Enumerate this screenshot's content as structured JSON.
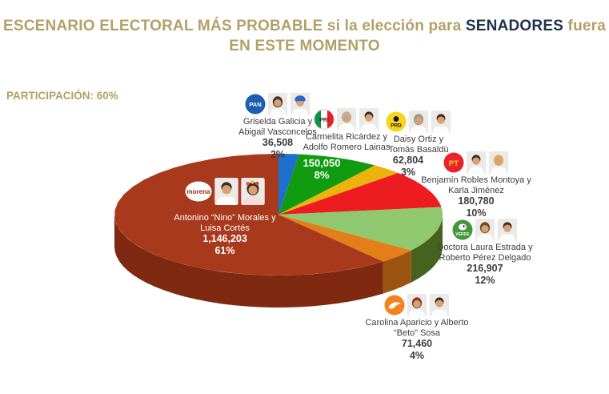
{
  "title": {
    "line1_pre": "ESCENARIO ELECTORAL MÁS PROBABLE si la elección para ",
    "line1_highlight": "SENADORES",
    "line1_post": " fuera",
    "line2": "EN ESTE MOMENTO"
  },
  "participation_label": "PARTICIPACIÓN: 60%",
  "colors": {
    "title_gold": "#B2A167",
    "highlight_navy": "#20324A",
    "label_text": "#3D3D3D",
    "on_slice_text": "#FFFFFF"
  },
  "chart_data": {
    "type": "pie",
    "style": "3d",
    "title": "ESCENARIO ELECTORAL MÁS PROBABLE si la elección para SENADORES fuera EN ESTE MOMENTO",
    "subtitle": "PARTICIPACIÓN: 60%",
    "start_angle_deg": -90,
    "direction": "clockwise",
    "legend": "none (labels outside with candidate photos and party logos)",
    "unit": "votes",
    "slices": [
      {
        "party": "PAN",
        "candidates": "Griselda Galicia y Abigail Vasconcelos",
        "votes": 36508,
        "pct": 2,
        "color": "#1F70CE"
      },
      {
        "party": "PRI",
        "candidates": "Carmelita Ricárdez y Adolfo Romero Lainas",
        "votes": 150050,
        "pct": 8,
        "color": "#119B11"
      },
      {
        "party": "PRD",
        "candidates": "Daisy Ortiz y Tomás Basaldú",
        "votes": 62804,
        "pct": 3,
        "color": "#EDB30D"
      },
      {
        "party": "PT",
        "candidates": "Benjamín Robles Montoya y Karla Jiménez",
        "votes": 180780,
        "pct": 10,
        "color": "#EC1C21"
      },
      {
        "party": "PVEM",
        "candidates": "Doctora Laura Estrada y Roberto Pérez Delgado",
        "votes": 216907,
        "pct": 12,
        "color": "#8FC86E",
        "side": "#46621F"
      },
      {
        "party": "MC",
        "candidates": "Carolina Aparicio y Alberto “Beto” Sosa",
        "votes": 71460,
        "pct": 4,
        "color": "#E37E19",
        "side": "#9C5510"
      },
      {
        "party": "MORENA",
        "candidates": "Antonino “Nino” Morales y Luisa Cortés",
        "votes": 1146203,
        "pct": 61,
        "color": "#A9391D",
        "side": "#7E2910"
      }
    ]
  },
  "groups": {
    "pan": {
      "logo": "PAN",
      "name1": "Griselda Galicia y",
      "name2": "Abigail Vasconcelos",
      "votes": "36,508",
      "pct": "2%"
    },
    "pri": {
      "logo": "PRI",
      "name1": "Carmelita Ricárdez y",
      "name2": "Adolfo Romero Lainas"
    },
    "pri_slice": {
      "votes": "150,050",
      "pct": "8%"
    },
    "prd": {
      "logo": "PRD",
      "name1": "Daisy Ortiz y",
      "name2": "Tomás Basaldú",
      "votes": "62,804",
      "pct": "3%"
    },
    "pt": {
      "logo": "PT",
      "name1": "Benjamín Robles Montoya y",
      "name2": "Karla Jiménez",
      "votes": "180,780",
      "pct": "10%"
    },
    "pvem": {
      "logo": "VERDE",
      "name1": "Doctora Laura Estrada y",
      "name2": "Roberto Pérez Delgado",
      "votes": "216,907",
      "pct": "12%"
    },
    "mc": {
      "name1": "Carolina Aparicio y Alberto",
      "name2": "“Beto” Sosa",
      "votes": "71,460",
      "pct": "4%"
    },
    "morena": {
      "logo": "morena",
      "name1": "Antonino “Nino” Morales y",
      "name2": "Luisa Cortés",
      "votes": "1,146,203",
      "pct": "61%"
    }
  }
}
